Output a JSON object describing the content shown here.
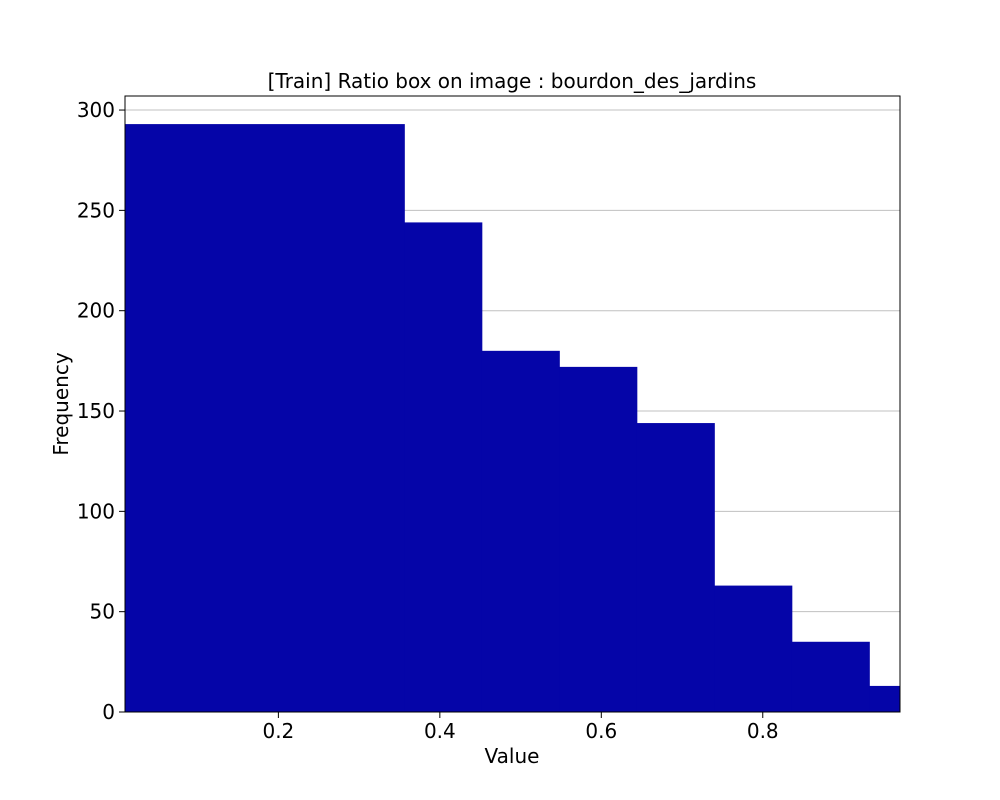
{
  "chart_data": {
    "type": "bar",
    "title": "[Train] Ratio box on image : bourdon_des_jardins",
    "xlabel": "Value",
    "ylabel": "Frequency",
    "xlim": [
      0.01,
      0.97
    ],
    "ylim": [
      0,
      307
    ],
    "x_ticks": [
      0.2,
      0.4,
      0.6,
      0.8
    ],
    "x_tick_labels": [
      "0.2",
      "0.4",
      "0.6",
      "0.8"
    ],
    "y_ticks": [
      0,
      50,
      100,
      150,
      200,
      250,
      300
    ],
    "y_tick_labels": [
      "0",
      "50",
      "100",
      "150",
      "200",
      "250",
      "300"
    ],
    "bin_edges": [
      0.01,
      0.356,
      0.452,
      0.548,
      0.644,
      0.74,
      0.836,
      0.932,
      0.97
    ],
    "values": [
      293,
      244,
      180,
      172,
      144,
      63,
      35,
      13
    ],
    "bar_color": "#0505a8",
    "grid": "y"
  }
}
